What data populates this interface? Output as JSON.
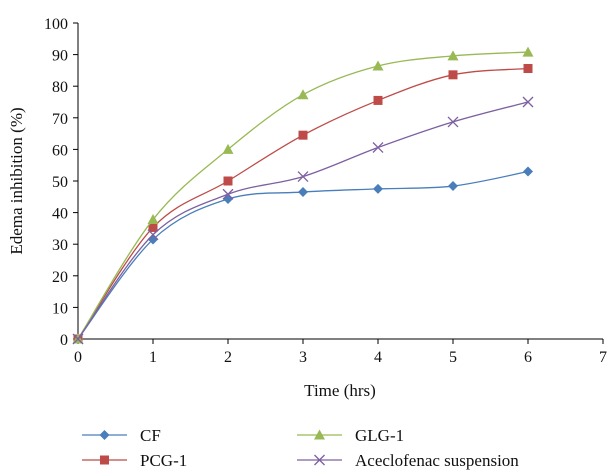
{
  "chart_data": {
    "type": "line",
    "smooth": true,
    "title": "",
    "xlabel": "Time (hrs)",
    "ylabel": "Edema inhibition (%)",
    "xlim": [
      0,
      7
    ],
    "ylim": [
      0,
      100
    ],
    "x_ticks": [
      0,
      1,
      2,
      3,
      4,
      5,
      6,
      7
    ],
    "y_ticks": [
      0,
      10,
      20,
      30,
      40,
      50,
      60,
      70,
      80,
      90,
      100
    ],
    "grid": false,
    "legend_position": "bottom",
    "x": [
      0,
      1,
      2,
      3,
      4,
      5,
      6
    ],
    "series": [
      {
        "name": "CF",
        "marker": "diamond",
        "color": "#4a7ebb",
        "values": [
          0,
          31.5,
          44.3,
          46.5,
          47.5,
          48.4,
          53.0
        ]
      },
      {
        "name": "PCG-1",
        "marker": "square",
        "color": "#be4b48",
        "values": [
          0,
          35.3,
          50.0,
          64.5,
          75.5,
          83.6,
          85.6
        ]
      },
      {
        "name": "GLG-1",
        "marker": "triangle",
        "color": "#98b954",
        "values": [
          0,
          37.8,
          60.0,
          77.3,
          86.4,
          89.6,
          90.8
        ]
      },
      {
        "name": "Aceclofenac suspension",
        "marker": "x",
        "color": "#7d60a0",
        "values": [
          0,
          33.0,
          45.8,
          51.4,
          60.6,
          68.7,
          75.0
        ]
      }
    ]
  }
}
